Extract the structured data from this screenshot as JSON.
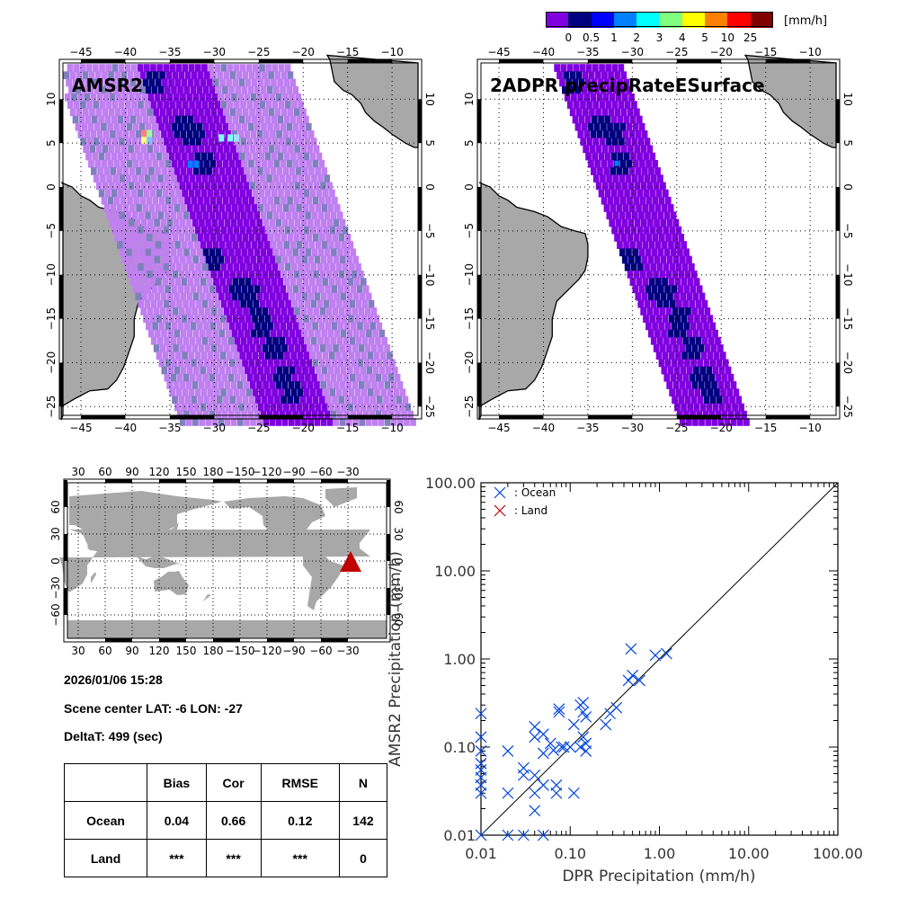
{
  "colorbar": {
    "unit": "[mm/h]",
    "labels": [
      "0",
      "0.5",
      "1",
      "2",
      "3",
      "4",
      "5",
      "10",
      "25"
    ],
    "colors": [
      "#8000e0",
      "#000080",
      "#0000ff",
      "#0080ff",
      "#00ffff",
      "#80ff80",
      "#ffff00",
      "#ff8000",
      "#ff0000",
      "#800000"
    ]
  },
  "colors": {
    "land": "#a8a8a8",
    "swath_light": "#c080f0",
    "swath_gray": "#8080c0",
    "ocean_marker": "#0044dd",
    "land_marker": "#c00000",
    "location_marker": "#c00000"
  },
  "map_top_left": {
    "title": "AMSR2",
    "lon_ticks": [
      "-45",
      "-40",
      "-35",
      "-30",
      "-25",
      "-20",
      "-15",
      "-10"
    ],
    "lat_ticks": [
      "10",
      "5",
      "0",
      "-5",
      "-10",
      "-15",
      "-20",
      "-25"
    ]
  },
  "map_top_right": {
    "title": "2ADPR precipRateESurface",
    "lon_ticks": [
      "-45",
      "-40",
      "-35",
      "-30",
      "-25",
      "-20",
      "-15",
      "-10"
    ],
    "lat_ticks": [
      "10",
      "5",
      "0",
      "-5",
      "-10",
      "-15",
      "-20",
      "-25"
    ]
  },
  "world_map": {
    "lon_ticks": [
      "30",
      "60",
      "90",
      "120",
      "150",
      "180",
      "-150",
      "-120",
      "-90",
      "-60",
      "-30"
    ],
    "lat_ticks": [
      "60",
      "30",
      "0",
      "-30",
      "-60"
    ],
    "marker": {
      "lat": -6,
      "lon": -27
    }
  },
  "info": {
    "datetime": "2026/01/06 15:28",
    "scene_center": "Scene center LAT: -6   LON: -27",
    "delta_t": "DeltaT:  499 (sec)"
  },
  "stats_table": {
    "headers": [
      "",
      "Bias",
      "Cor",
      "RMSE",
      "N"
    ],
    "rows": [
      [
        "Ocean",
        "0.04",
        "0.66",
        "0.12",
        "142"
      ],
      [
        "Land",
        "***",
        "***",
        "***",
        "0"
      ]
    ]
  },
  "chart_data": {
    "type": "scatter",
    "title": "",
    "xlabel": "DPR Precipitation (mm/h)",
    "ylabel": "AMSR2 Precipitation (mm/h)",
    "xscale": "log",
    "yscale": "log",
    "xlim": [
      0.01,
      100
    ],
    "ylim": [
      0.01,
      100
    ],
    "x_tick_labels": [
      "0.01",
      "0.10",
      "1.00",
      "10.00",
      "100.00"
    ],
    "y_tick_labels": [
      "0.01",
      "0.10",
      "1.00",
      "10.00",
      "100.00"
    ],
    "reference_line": "1:1",
    "legend": {
      "placement": "top-left",
      "entries": [
        {
          "name": ": Ocean",
          "marker": "x",
          "color": "#0044dd"
        },
        {
          "name": ": Land",
          "marker": "x",
          "color": "#c00000"
        }
      ]
    },
    "series": [
      {
        "name": "Ocean",
        "points": [
          [
            0.01,
            0.24
          ],
          [
            0.01,
            0.13
          ],
          [
            0.01,
            0.09
          ],
          [
            0.01,
            0.065
          ],
          [
            0.01,
            0.055
          ],
          [
            0.01,
            0.045
          ],
          [
            0.01,
            0.037
          ],
          [
            0.01,
            0.03
          ],
          [
            0.01,
            0.01
          ],
          [
            0.02,
            0.09
          ],
          [
            0.02,
            0.03
          ],
          [
            0.02,
            0.01
          ],
          [
            0.03,
            0.058
          ],
          [
            0.03,
            0.048
          ],
          [
            0.03,
            0.01
          ],
          [
            0.04,
            0.17
          ],
          [
            0.04,
            0.13
          ],
          [
            0.04,
            0.048
          ],
          [
            0.04,
            0.03
          ],
          [
            0.04,
            0.019
          ],
          [
            0.05,
            0.14
          ],
          [
            0.05,
            0.085
          ],
          [
            0.05,
            0.037
          ],
          [
            0.05,
            0.01
          ],
          [
            0.06,
            0.11
          ],
          [
            0.065,
            0.092
          ],
          [
            0.07,
            0.037
          ],
          [
            0.07,
            0.03
          ],
          [
            0.075,
            0.27
          ],
          [
            0.075,
            0.25
          ],
          [
            0.08,
            0.1
          ],
          [
            0.085,
            0.1
          ],
          [
            0.1,
            0.1
          ],
          [
            0.11,
            0.03
          ],
          [
            0.11,
            0.18
          ],
          [
            0.13,
            0.3
          ],
          [
            0.14,
            0.32
          ],
          [
            0.14,
            0.25
          ],
          [
            0.15,
            0.22
          ],
          [
            0.13,
            0.1
          ],
          [
            0.14,
            0.13
          ],
          [
            0.15,
            0.11
          ],
          [
            0.15,
            0.09
          ],
          [
            0.25,
            0.18
          ],
          [
            0.28,
            0.24
          ],
          [
            0.33,
            0.28
          ],
          [
            0.45,
            0.57
          ],
          [
            0.5,
            0.65
          ],
          [
            0.48,
            1.3
          ],
          [
            0.6,
            0.57
          ],
          [
            0.9,
            1.1
          ],
          [
            1.2,
            1.15
          ]
        ]
      },
      {
        "name": "Land",
        "points": []
      }
    ]
  }
}
